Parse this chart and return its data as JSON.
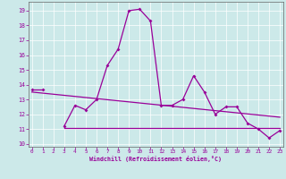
{
  "xlabel": "Windchill (Refroidissement éolien,°C)",
  "main_curve_x": [
    3,
    4,
    5,
    6,
    7,
    8,
    9,
    10,
    11,
    12,
    13,
    14,
    15,
    16,
    17,
    18,
    19,
    20,
    21,
    22,
    23
  ],
  "main_curve_y": [
    11.2,
    12.6,
    12.3,
    13.0,
    15.3,
    16.4,
    19.0,
    19.1,
    18.3,
    12.6,
    12.6,
    13.0,
    14.6,
    13.5,
    12.0,
    12.5,
    12.5,
    11.4,
    11.0,
    10.4,
    10.9
  ],
  "short_line_x": [
    0,
    1
  ],
  "short_line_y": [
    13.7,
    13.7
  ],
  "trend_line_x": [
    0,
    23
  ],
  "trend_line_y": [
    13.5,
    11.8
  ],
  "flat_line_x": [
    3,
    23
  ],
  "flat_line_y": [
    11.1,
    11.1
  ],
  "bg_color": "#cce9e9",
  "grid_color": "#ffffff",
  "line_color": "#990099",
  "ylim": [
    9.8,
    19.6
  ],
  "xlim": [
    -0.3,
    23.3
  ],
  "yticks": [
    10,
    11,
    12,
    13,
    14,
    15,
    16,
    17,
    18,
    19
  ],
  "xticks": [
    0,
    1,
    2,
    3,
    4,
    5,
    6,
    7,
    8,
    9,
    10,
    11,
    12,
    13,
    14,
    15,
    16,
    17,
    18,
    19,
    20,
    21,
    22,
    23
  ]
}
